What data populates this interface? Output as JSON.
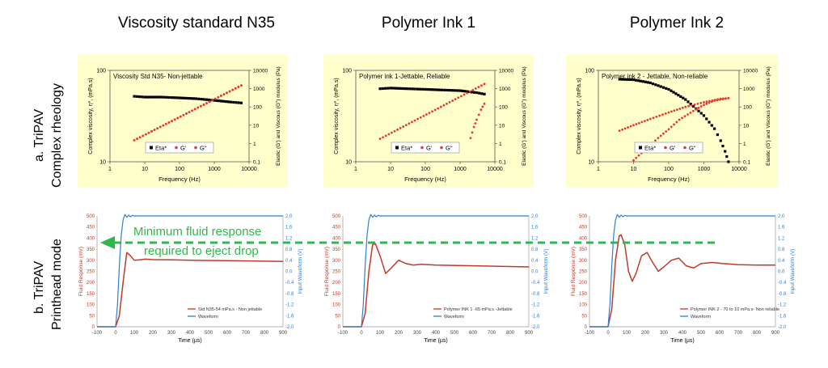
{
  "column_titles": [
    "Viscosity standard N35",
    "Polymer Ink 1",
    "Polymer Ink 2"
  ],
  "row_labels": {
    "a_line1": "a. TriPAV",
    "a_line2": "Complex  rheology",
    "b_line1": "b. TriPAV",
    "b_line2": "Printhead mode"
  },
  "annotation": {
    "line1": "Minimum fluid response",
    "line2": "required to eject drop",
    "color": "#2fb84a"
  },
  "colors": {
    "rheo_bg": "#ffffcc",
    "eta": "#000000",
    "moduli": "#e8392b",
    "fluid_response": "#c0392b",
    "waveform": "#2f7fd1"
  },
  "chart_data": [
    {
      "type": "scatter",
      "title": "Viscosity Std N35- Non-jettable",
      "xlabel": "Frequency (Hz)",
      "ylabel_left": "Complex viscosity, η*, (mPa.s)",
      "ylabel_right": "Elastic (G') and Viscous (G\") modulus (Pa)",
      "xscale": "log",
      "yscale_left": "log",
      "yscale_right": "log",
      "xlim": [
        1,
        10000
      ],
      "ylim_left": [
        10,
        100
      ],
      "ylim_right": [
        0.1,
        10000
      ],
      "xticks": [
        "1",
        "10",
        "100",
        "1000",
        "10000"
      ],
      "yticks_left": [
        "10",
        "100"
      ],
      "yticks_right": [
        "0.1",
        "1",
        "10",
        "100",
        "1000",
        "10000"
      ],
      "legend": [
        "Eta*",
        "G'",
        "G\""
      ],
      "legend_position": "bottom-center",
      "series": [
        {
          "name": "Eta*",
          "axis": "left",
          "x": [
            5,
            10,
            30,
            100,
            300,
            1000,
            3000,
            6000
          ],
          "y": [
            52,
            51,
            51,
            50,
            49,
            47,
            45,
            44
          ]
        },
        {
          "name": "G'",
          "axis": "right",
          "x": [
            5,
            6000
          ],
          "y": [
            1.5,
            1500
          ]
        },
        {
          "name": "G\"",
          "axis": "right",
          "x": [
            5,
            6000
          ],
          "y": [
            1.5,
            1500
          ]
        }
      ]
    },
    {
      "type": "scatter",
      "title": "Polymer ink 1-Jettable, Reliable",
      "xlabel": "Frequency (Hz)",
      "ylabel_left": "Complex viscosity, η*, (mPa.s)",
      "ylabel_right": "Elastic (G') and Viscous (G\") modulus (Pa)",
      "xscale": "log",
      "yscale_left": "log",
      "yscale_right": "log",
      "xlim": [
        1,
        10000
      ],
      "ylim_left": [
        10,
        100
      ],
      "ylim_right": [
        0.1,
        10000
      ],
      "xticks": [
        "1",
        "10",
        "100",
        "1000",
        "10000"
      ],
      "yticks_left": [
        "10",
        "100"
      ],
      "yticks_right": [
        "0.1",
        "1",
        "10",
        "100",
        "1000",
        "10000"
      ],
      "legend": [
        "Eta*",
        "G'",
        "G\""
      ],
      "legend_position": "bottom-center",
      "series": [
        {
          "name": "Eta*",
          "axis": "left",
          "x": [
            5,
            10,
            30,
            100,
            300,
            1000,
            3000,
            5000
          ],
          "y": [
            63,
            64,
            63,
            62,
            61,
            60,
            57,
            55
          ]
        },
        {
          "name": "G'",
          "axis": "right",
          "x": [
            2000,
            2500,
            3000,
            4000,
            5000
          ],
          "y": [
            2,
            8,
            20,
            70,
            150
          ]
        },
        {
          "name": "G\"",
          "axis": "right",
          "x": [
            5,
            5000
          ],
          "y": [
            1.8,
            1800
          ]
        }
      ]
    },
    {
      "type": "scatter",
      "title": "Polymer ink 2 - Jettable, Non-reliable",
      "xlabel": "Frequency (Hz)",
      "ylabel_left": "Complex viscosity, η*, (mPa.s)",
      "ylabel_right": "Elastic (G') and Viscous (G\") modulus (Pa)",
      "xscale": "log",
      "yscale_left": "log",
      "yscale_right": "log",
      "xlim": [
        1,
        10000
      ],
      "ylim_left": [
        10,
        100
      ],
      "ylim_right": [
        0.1,
        10000
      ],
      "xticks": [
        "1",
        "10",
        "100",
        "1000",
        "10000"
      ],
      "yticks_left": [
        "10",
        "100"
      ],
      "yticks_right": [
        "0.1",
        "1",
        "10",
        "100",
        "1000",
        "10000"
      ],
      "legend": [
        "Eta*",
        "G'",
        "G\""
      ],
      "legend_position": "bottom-center",
      "series": [
        {
          "name": "Eta*",
          "axis": "left",
          "x": [
            4,
            10,
            30,
            100,
            300,
            1000,
            2000,
            3000,
            4000,
            5000
          ],
          "y": [
            80,
            79,
            73,
            62,
            48,
            32,
            23,
            17,
            13,
            10
          ]
        },
        {
          "name": "G'",
          "axis": "right",
          "x": [
            10,
            20,
            50,
            100,
            200,
            500,
            1000,
            2000,
            5000
          ],
          "y": [
            0.12,
            0.4,
            2,
            6,
            20,
            60,
            130,
            220,
            300
          ]
        },
        {
          "name": "G\"",
          "axis": "right",
          "x": [
            4,
            10,
            30,
            100,
            300,
            1000,
            3000,
            5000
          ],
          "y": [
            5,
            10,
            22,
            50,
            100,
            180,
            280,
            300
          ]
        }
      ]
    },
    {
      "type": "line",
      "xlabel": "Time (µs)",
      "ylabel_left": "Fluid Response (mV)",
      "ylabel_right": "Input Waveform  (V)",
      "xlim": [
        -100,
        900
      ],
      "ylim_left": [
        0,
        500
      ],
      "ylim_right": [
        -2.0,
        2.0
      ],
      "xticks": [
        "-100",
        "0",
        "100",
        "200",
        "300",
        "400",
        "500",
        "600",
        "700",
        "800",
        "900"
      ],
      "yticks_left": [
        "0",
        "50",
        "100",
        "150",
        "200",
        "250",
        "300",
        "350",
        "400",
        "450",
        "500"
      ],
      "yticks_right": [
        "-2.0",
        "-1.6",
        "-1.2",
        "-0.8",
        "-0.4",
        "0.0",
        "0.4",
        "0.8",
        "1.2",
        "1.6",
        "2.0"
      ],
      "legend": [
        "Std N35-54 mPa.s - Non jettable",
        "Waveform"
      ],
      "legend_position": "bottom-right",
      "series": [
        {
          "name": "Std N35-54 mPa.s - Non jettable",
          "axis": "left",
          "x": [
            -100,
            0,
            20,
            40,
            60,
            80,
            100,
            130,
            160,
            200,
            300,
            400,
            600,
            900
          ],
          "y": [
            0,
            0,
            50,
            200,
            335,
            320,
            300,
            302,
            305,
            303,
            302,
            300,
            298,
            295
          ]
        },
        {
          "name": "Waveform",
          "axis": "right",
          "x": [
            -100,
            0,
            10,
            20,
            30,
            40,
            50,
            60,
            70,
            80,
            90,
            100,
            120,
            900
          ],
          "y": [
            -2.0,
            -2.0,
            -1.2,
            0.2,
            1.3,
            1.85,
            2.05,
            1.95,
            2.03,
            1.97,
            2.02,
            2.0,
            2.0,
            2.0
          ]
        }
      ]
    },
    {
      "type": "line",
      "xlabel": "Time (µs)",
      "ylabel_left": "Fluid Response (mV)",
      "ylabel_right": "Input Waveform  (V)",
      "xlim": [
        -100,
        900
      ],
      "ylim_left": [
        0,
        500
      ],
      "ylim_right": [
        -2.0,
        2.0
      ],
      "xticks": [
        "-100",
        "0",
        "100",
        "200",
        "300",
        "400",
        "500",
        "600",
        "700",
        "800",
        "900"
      ],
      "yticks_left": [
        "0",
        "50",
        "100",
        "150",
        "200",
        "250",
        "300",
        "350",
        "400",
        "450",
        "500"
      ],
      "yticks_right": [
        "-2.0",
        "-1.6",
        "-1.2",
        "-0.8",
        "-0.4",
        "0.0",
        "0.4",
        "0.8",
        "1.2",
        "1.6",
        "2.0"
      ],
      "legend": [
        "Polymer INK 1 -65 mPa.s -Jettable",
        "Waveform"
      ],
      "legend_position": "bottom-right",
      "series": [
        {
          "name": "Polymer INK 1 -65 mPa.s -Jettable",
          "axis": "left",
          "x": [
            -100,
            0,
            20,
            40,
            60,
            75,
            100,
            130,
            160,
            200,
            240,
            280,
            320,
            400,
            600,
            900
          ],
          "y": [
            0,
            0,
            60,
            250,
            370,
            375,
            320,
            240,
            265,
            300,
            285,
            278,
            282,
            278,
            275,
            270
          ]
        },
        {
          "name": "Waveform",
          "axis": "right",
          "x": [
            -100,
            0,
            10,
            20,
            30,
            40,
            50,
            60,
            70,
            80,
            90,
            100,
            120,
            900
          ],
          "y": [
            -2.0,
            -2.0,
            -1.2,
            0.2,
            1.3,
            1.85,
            2.05,
            1.95,
            2.03,
            1.97,
            2.02,
            2.0,
            2.0,
            2.0
          ]
        }
      ]
    },
    {
      "type": "line",
      "xlabel": "Time (µs)",
      "ylabel_left": "Fluid Response (mV)",
      "ylabel_right": "Input Waveform  (V)",
      "xlim": [
        -100,
        900
      ],
      "ylim_left": [
        0,
        500
      ],
      "ylim_right": [
        -2.0,
        2.0
      ],
      "xticks": [
        "-100",
        "0",
        "100",
        "200",
        "300",
        "400",
        "500",
        "600",
        "700",
        "800",
        "900"
      ],
      "yticks_left": [
        "0",
        "50",
        "100",
        "150",
        "200",
        "250",
        "300",
        "350",
        "400",
        "450",
        "500"
      ],
      "yticks_right": [
        "-2.0",
        "-1.6",
        "-1.2",
        "-0.8",
        "-0.4",
        "0.0",
        "0.4",
        "0.8",
        "1.2",
        "1.6",
        "2.0"
      ],
      "legend": [
        "Polymer INK 2 - 70 to 10 mPa.s- Non reliable",
        "Waveform"
      ],
      "legend_position": "bottom-right",
      "series": [
        {
          "name": "Polymer INK 2 - 70 to 10 mPa.s- Non reliable",
          "axis": "left",
          "x": [
            -100,
            0,
            20,
            40,
            60,
            70,
            90,
            110,
            130,
            150,
            180,
            210,
            240,
            270,
            300,
            340,
            380,
            420,
            460,
            500,
            560,
            620,
            700,
            800,
            900
          ],
          "y": [
            0,
            0,
            80,
            300,
            410,
            415,
            370,
            250,
            205,
            240,
            320,
            335,
            290,
            250,
            270,
            300,
            310,
            275,
            265,
            285,
            290,
            285,
            280,
            278,
            278
          ]
        },
        {
          "name": "Waveform",
          "axis": "right",
          "x": [
            -100,
            0,
            10,
            20,
            30,
            40,
            50,
            60,
            70,
            80,
            90,
            100,
            120,
            900
          ],
          "y": [
            -2.0,
            -2.0,
            -1.2,
            0.2,
            1.3,
            1.85,
            2.05,
            1.95,
            2.03,
            1.97,
            2.02,
            2.0,
            2.0,
            2.0
          ]
        }
      ]
    }
  ]
}
